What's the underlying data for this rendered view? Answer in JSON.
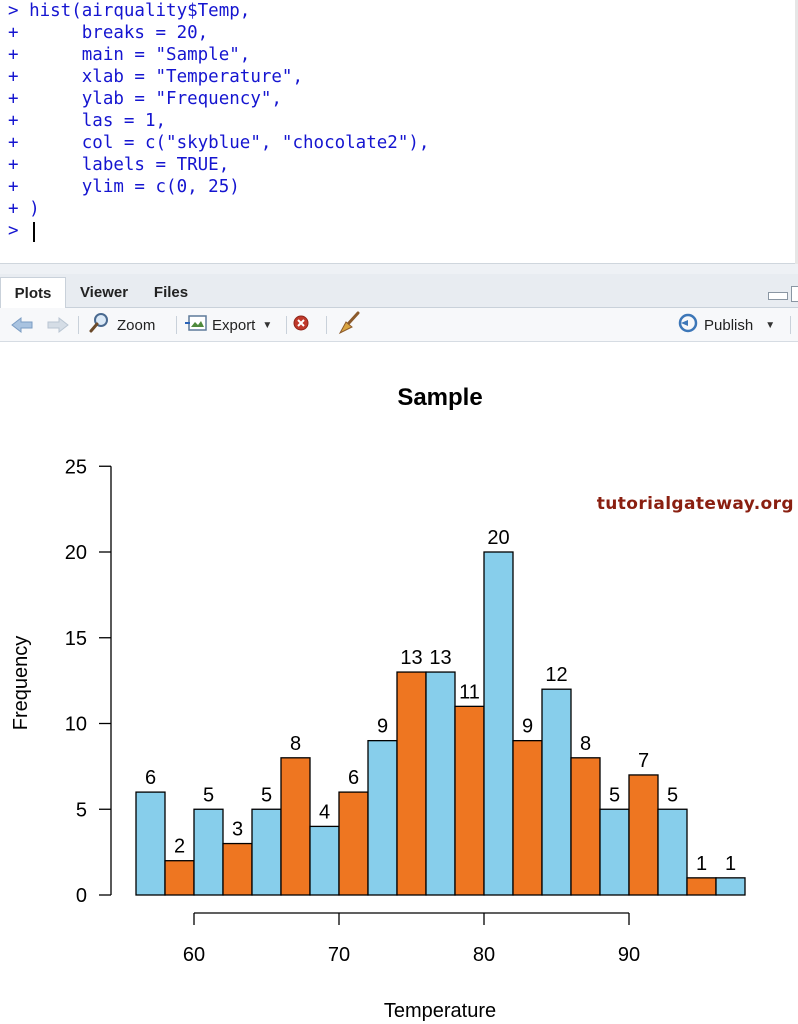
{
  "console": {
    "lines": [
      "> hist(airquality$Temp,",
      "+      breaks = 20,",
      "+      main = \"Sample\",",
      "+      xlab = \"Temperature\",",
      "+      ylab = \"Frequency\",",
      "+      las = 1,",
      "+      col = c(\"skyblue\", \"chocolate2\"),",
      "+      labels = TRUE,",
      "+      ylim = c(0, 25)",
      "+ )",
      "> "
    ]
  },
  "tabs": [
    {
      "label": "Plots",
      "active": true
    },
    {
      "label": "Viewer",
      "active": false
    },
    {
      "label": "Files",
      "active": false
    }
  ],
  "toolbar": {
    "back_icon": "back-arrow-icon",
    "forward_icon": "forward-arrow-icon",
    "zoom_label": "Zoom",
    "export_label": "Export",
    "remove_icon": "remove-plot-icon",
    "clear_icon": "broom-icon",
    "publish_label": "Publish"
  },
  "watermark": "tutorialgateway.org",
  "colors": {
    "console_text": "#1515d0",
    "bar_a": "#87ceeb",
    "bar_b": "#ee7621",
    "watermark": "#8a1f10"
  },
  "chart_data": {
    "type": "bar",
    "title": "Sample",
    "xlabel": "Temperature",
    "ylabel": "Frequency",
    "bins": [
      [
        56,
        58
      ],
      [
        58,
        60
      ],
      [
        60,
        62
      ],
      [
        62,
        64
      ],
      [
        64,
        66
      ],
      [
        66,
        68
      ],
      [
        68,
        70
      ],
      [
        70,
        72
      ],
      [
        72,
        74
      ],
      [
        74,
        76
      ],
      [
        76,
        78
      ],
      [
        78,
        80
      ],
      [
        80,
        82
      ],
      [
        82,
        84
      ],
      [
        84,
        86
      ],
      [
        86,
        88
      ],
      [
        88,
        90
      ],
      [
        90,
        92
      ],
      [
        92,
        94
      ],
      [
        94,
        96
      ],
      [
        96,
        98
      ]
    ],
    "values": [
      6,
      2,
      5,
      3,
      5,
      8,
      4,
      6,
      9,
      13,
      13,
      11,
      20,
      9,
      12,
      8,
      5,
      7,
      5,
      1,
      1
    ],
    "colors": [
      "skyblue",
      "chocolate2"
    ],
    "xticks": [
      60,
      70,
      80,
      90
    ],
    "yticks": [
      0,
      5,
      10,
      15,
      20,
      25
    ],
    "xlim": [
      56,
      98
    ],
    "ylim": [
      0,
      25
    ],
    "bar_labels": true,
    "grid": false
  }
}
